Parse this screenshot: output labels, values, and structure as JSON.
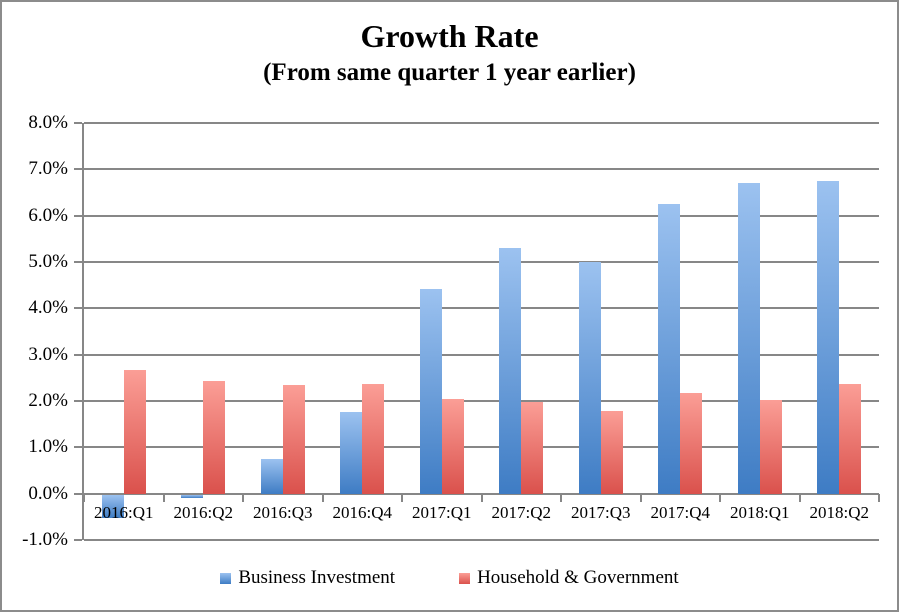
{
  "header": {
    "title": "Growth Rate",
    "subtitle": "(From same quarter 1 year earlier)"
  },
  "chart_data": {
    "type": "bar",
    "title": "Growth Rate",
    "subtitle": "(From same quarter 1 year earlier)",
    "categories": [
      "2016:Q1",
      "2016:Q2",
      "2016:Q3",
      "2016:Q4",
      "2017:Q1",
      "2017:Q2",
      "2017:Q3",
      "2017:Q4",
      "2018:Q1",
      "2018:Q2"
    ],
    "series": [
      {
        "name": "Business Investment",
        "values": [
          -0.5,
          -0.07,
          0.76,
          1.78,
          4.43,
          5.3,
          5.0,
          6.25,
          6.72,
          6.75
        ],
        "color_top": "#9cc2f0",
        "color_bottom": "#3e7cc4"
      },
      {
        "name": "Household & Government",
        "values": [
          2.67,
          2.43,
          2.35,
          2.37,
          2.05,
          1.98,
          1.8,
          2.18,
          2.02,
          2.37
        ],
        "color_top": "#fb9e96",
        "color_bottom": "#da514c"
      }
    ],
    "xlabel": "",
    "ylabel": "",
    "ylim": [
      -1,
      8
    ],
    "ytick_step": 1,
    "ytick_labels": [
      "8.0%",
      "7.0%",
      "6.0%",
      "5.0%",
      "4.0%",
      "3.0%",
      "2.0%",
      "1.0%",
      "0.0%",
      "-1.0%"
    ],
    "grid": "horizontal",
    "legend_position": "bottom",
    "colors": {
      "gridline": "#878787",
      "axis": "#878787",
      "frame_border": "#8c8c8c",
      "text": "#000000",
      "background": "#ffffff"
    }
  }
}
